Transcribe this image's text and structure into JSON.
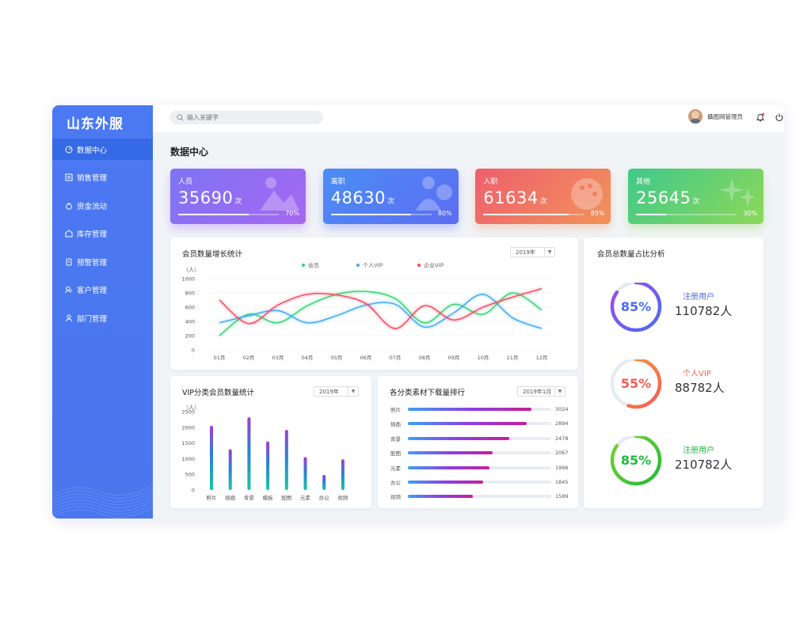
{
  "app": {
    "logo": "山东外服"
  },
  "sidebar": {
    "items": [
      {
        "label": "数据中心",
        "icon": "dashboard-icon"
      },
      {
        "label": "销售管理",
        "icon": "sales-icon"
      },
      {
        "label": "资金流动",
        "icon": "money-icon"
      },
      {
        "label": "库存管理",
        "icon": "warehouse-icon"
      },
      {
        "label": "预警管理",
        "icon": "alert-icon"
      },
      {
        "label": "客户管理",
        "icon": "customer-icon"
      },
      {
        "label": "部门管理",
        "icon": "department-icon"
      }
    ]
  },
  "topbar": {
    "search_placeholder": "输入关键字",
    "user_name": "攝图网管理员"
  },
  "page": {
    "title": "数据中心"
  },
  "stats": [
    {
      "label": "人员",
      "value": "35690",
      "unit": "次",
      "percent": "70%",
      "fill": 70,
      "gradient": [
        "#7e74f5",
        "#a667f1"
      ]
    },
    {
      "label": "离职",
      "value": "48630",
      "unit": "次",
      "percent": "80%",
      "fill": 80,
      "gradient": [
        "#4a8ef5",
        "#5d6cf3"
      ]
    },
    {
      "label": "入职",
      "value": "61634",
      "unit": "次",
      "percent": "85%",
      "fill": 85,
      "gradient": [
        "#ef5f6e",
        "#f0935a"
      ]
    },
    {
      "label": "其他",
      "value": "25645",
      "unit": "次",
      "percent": "30%",
      "fill": 30,
      "gradient": [
        "#3fc98a",
        "#8dd858"
      ]
    }
  ],
  "line_panel": {
    "title": "会员数量增长统计",
    "select": "2019年",
    "y_unit": "（人）"
  },
  "bar_panel": {
    "title": "VIP分类会员数量统计",
    "select": "2019年",
    "y_unit": "（人）"
  },
  "rank_panel": {
    "title": "各分类素材下载量排行",
    "select": "2019年1月"
  },
  "ring_panel": {
    "title": "会员总数量占比分析",
    "rings": [
      {
        "percent": "85%",
        "value_pct": 85,
        "label": "注册用户",
        "count": "110782人",
        "color": "#4a6cf0",
        "color2": "#a24ae8"
      },
      {
        "percent": "55%",
        "value_pct": 55,
        "label": "个人VIP",
        "count": "88782人",
        "color": "#f45c58",
        "color2": "#f6a33b"
      },
      {
        "percent": "85%",
        "value_pct": 85,
        "label": "注册用户",
        "count": "210782人",
        "color": "#1fba3c",
        "color2": "#7ed530"
      }
    ]
  },
  "chart_data": [
    {
      "type": "line",
      "title": "会员数量增长统计",
      "ylabel": "（人）",
      "ylim": [
        0,
        1000
      ],
      "yticks": [
        0,
        200,
        400,
        600,
        800,
        1000
      ],
      "categories": [
        "01月",
        "02月",
        "03月",
        "04月",
        "05月",
        "06月",
        "07月",
        "08月",
        "09月",
        "10月",
        "11月",
        "12月"
      ],
      "legend_position": "top-center",
      "series": [
        {
          "name": "会员",
          "color": "#2ed573",
          "values": [
            200,
            500,
            380,
            620,
            780,
            820,
            720,
            380,
            640,
            500,
            800,
            560
          ]
        },
        {
          "name": "个人VIP",
          "color": "#3fa7f5",
          "values": [
            380,
            480,
            550,
            380,
            480,
            630,
            640,
            320,
            520,
            780,
            450,
            300
          ]
        },
        {
          "name": "企业VIP",
          "color": "#f5475d",
          "values": [
            700,
            370,
            630,
            780,
            770,
            650,
            300,
            620,
            420,
            600,
            740,
            860
          ]
        }
      ]
    },
    {
      "type": "bar",
      "title": "VIP分类会员数量统计",
      "ylabel": "（人）",
      "ylim": [
        0,
        2500
      ],
      "yticks": [
        0,
        500,
        1000,
        1500,
        2000,
        2500
      ],
      "categories": [
        "照片",
        "插画",
        "背景",
        "模板",
        "配图",
        "元素",
        "办公",
        "视频"
      ],
      "values": [
        2050,
        1300,
        2320,
        1550,
        1920,
        1050,
        480,
        980
      ]
    },
    {
      "type": "bar",
      "orientation": "horizontal",
      "title": "各分类素材下载量排行",
      "categories": [
        "照片",
        "插画",
        "背景",
        "配图",
        "元素",
        "办公",
        "视频"
      ],
      "values": [
        3024,
        2894,
        2478,
        2067,
        1996,
        1845,
        1589
      ]
    }
  ]
}
